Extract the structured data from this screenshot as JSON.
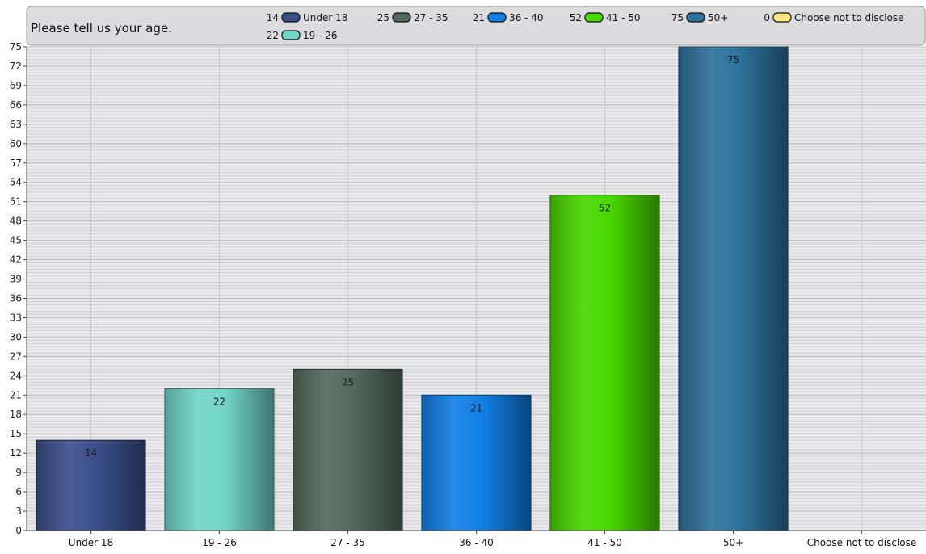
{
  "chart_data": {
    "type": "bar",
    "title": "Please tell us your age.",
    "categories": [
      "Under 18",
      "19 - 26",
      "27 - 35",
      "36 - 40",
      "41 - 50",
      "50+",
      "Choose not to disclose"
    ],
    "values": [
      14,
      22,
      25,
      21,
      52,
      75,
      0
    ],
    "ylim": [
      0,
      75
    ],
    "ytick_step": 3,
    "grid": true,
    "legend_position": "top",
    "legend": [
      {
        "value": "14",
        "label": "Under 18"
      },
      {
        "value": "25",
        "label": "27 - 35"
      },
      {
        "value": "21",
        "label": "36 - 40"
      },
      {
        "value": "52",
        "label": "41 - 50"
      },
      {
        "value": "75",
        "label": "50+"
      },
      {
        "value": "0",
        "label": "Choose not to disclose"
      },
      {
        "value": "22",
        "label": "19 - 26"
      }
    ],
    "colors": {
      "Under 18": "#3b4f8c",
      "19 - 26": "#72d6c9",
      "27 - 35": "#56695f",
      "36 - 40": "#1280e6",
      "41 - 50": "#49d800",
      "50+": "#2f739c",
      "Choose not to disclose": "#ffe680"
    }
  }
}
